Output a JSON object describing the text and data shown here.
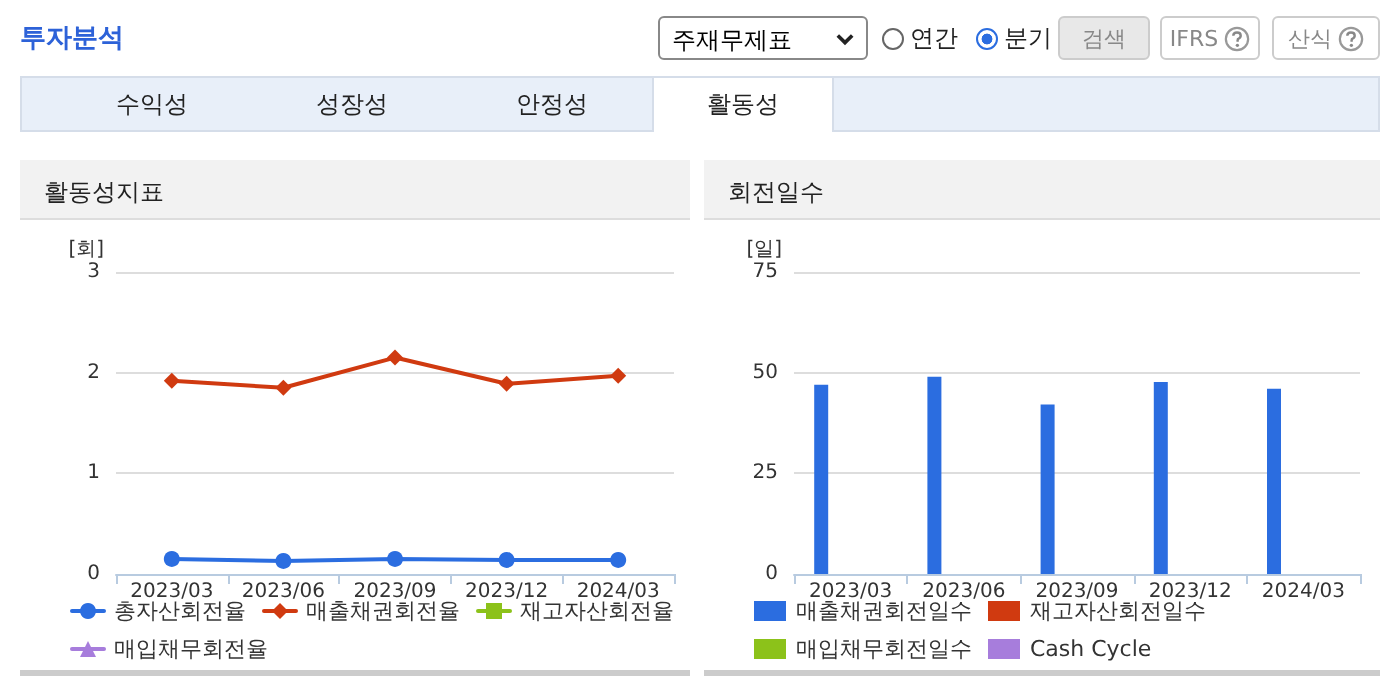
{
  "chart_data": [
    {
      "type": "other",
      "title": "투자분석",
      "annotations": [
        "주재무제표",
        "연간",
        "분기",
        "검색",
        "IFRS",
        "산식",
        "수익성",
        "성장성",
        "안정성",
        "활동성"
      ]
    },
    {
      "type": "line",
      "title": "활동성지표",
      "ylabel": "[회]",
      "categories": [
        "2023/03",
        "2023/06",
        "2023/09",
        "2023/12",
        "2024/03"
      ],
      "ylim": [
        0,
        3
      ],
      "yticks": [
        0,
        1,
        2,
        3
      ],
      "grid": "y",
      "legend": "bottom",
      "line_style": "solid",
      "series": [
        {
          "name": "총자산회전율",
          "color": "#2b6de0",
          "marker": "circle",
          "values": [
            0.15,
            0.13,
            0.15,
            0.14,
            0.14
          ]
        },
        {
          "name": "매출채권회전율",
          "color": "#d03a10",
          "marker": "diamond",
          "values": [
            1.92,
            1.85,
            2.15,
            1.89,
            1.97
          ]
        },
        {
          "name": "재고자산회전율",
          "color": "#8cc21a",
          "marker": "square",
          "values": [
            null,
            null,
            null,
            null,
            null
          ]
        },
        {
          "name": "매입채무회전율",
          "color": "#a77ddc",
          "marker": "triangle",
          "values": [
            null,
            null,
            null,
            null,
            null
          ]
        }
      ]
    },
    {
      "type": "bar",
      "title": "회전일수",
      "ylabel": "[일]",
      "categories": [
        "2023/03",
        "2023/06",
        "2023/09",
        "2023/12",
        "2024/03"
      ],
      "ylim": [
        0,
        75
      ],
      "yticks": [
        0,
        25,
        50,
        75
      ],
      "grid": "y",
      "legend": "bottom",
      "series": [
        {
          "name": "매출채권회전일수",
          "color": "#2b6de0",
          "values": [
            47.0,
            49.0,
            42.1,
            47.7,
            46.0
          ]
        },
        {
          "name": "재고자산회전일수",
          "color": "#d03a10",
          "values": [
            null,
            null,
            null,
            null,
            null
          ]
        },
        {
          "name": "매입채무회전일수",
          "color": "#8cc21a",
          "values": [
            null,
            null,
            null,
            null,
            null
          ]
        },
        {
          "name": "Cash Cycle",
          "color": "#a77ddc",
          "values": [
            null,
            null,
            null,
            null,
            null
          ]
        }
      ]
    }
  ]
}
